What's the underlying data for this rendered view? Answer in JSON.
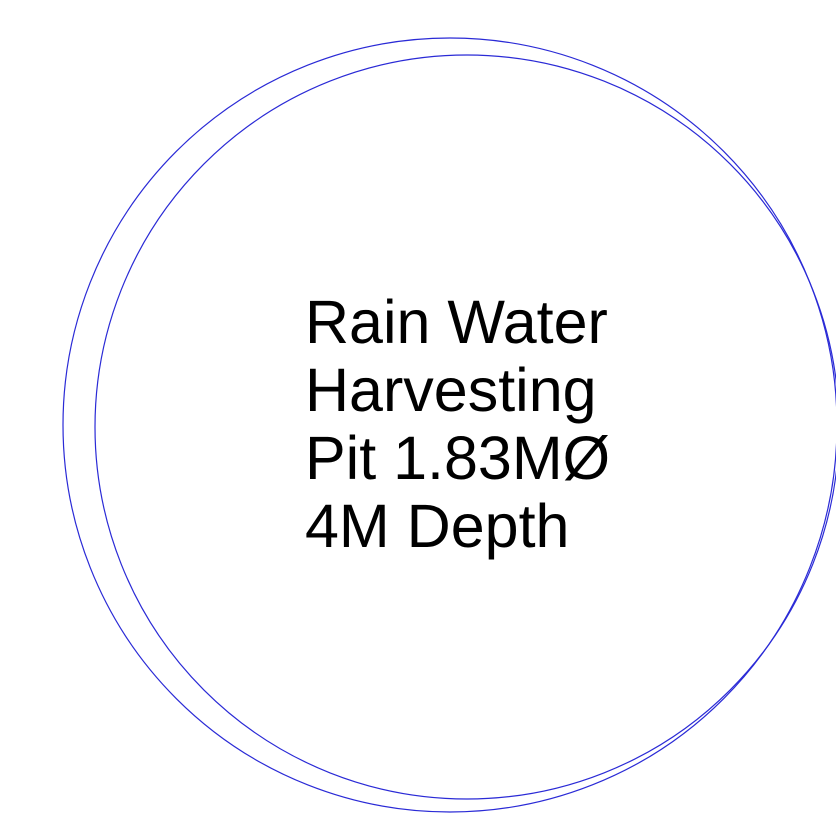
{
  "drawing": {
    "stroke_color": "#2a2ad6",
    "text_color": "#000000",
    "label_lines": [
      "Rain Water",
      "Harvesting",
      "Pit 1.83MØ",
      "4M Depth"
    ]
  }
}
